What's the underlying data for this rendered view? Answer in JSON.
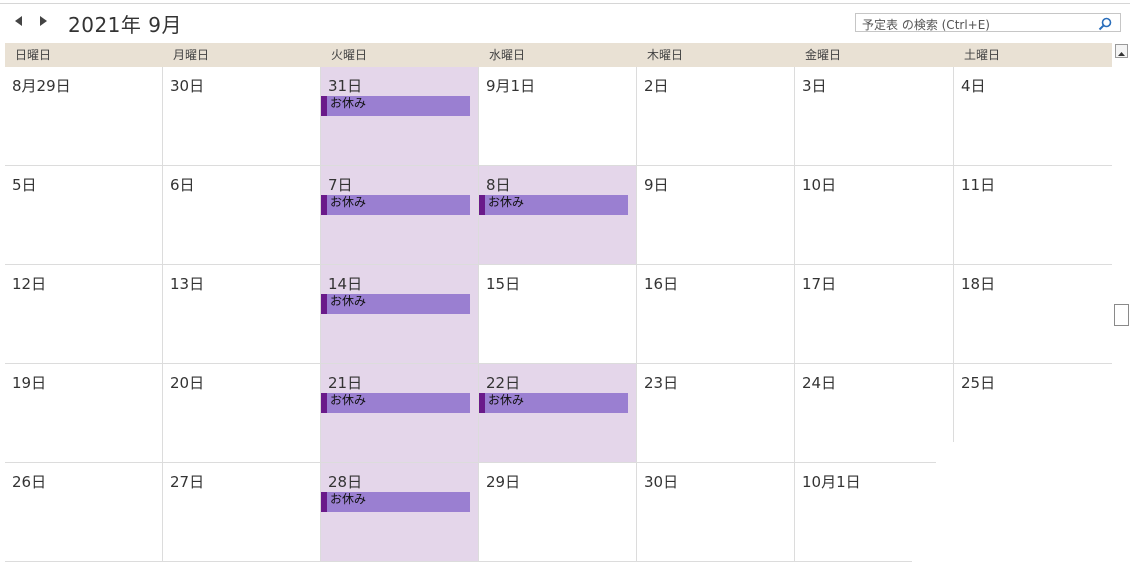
{
  "header": {
    "title": "2021年 9月",
    "search_placeholder": "予定表 の検索 (Ctrl+E)"
  },
  "weekdays": [
    "日曜日",
    "月曜日",
    "火曜日",
    "水曜日",
    "木曜日",
    "金曜日",
    "土曜日"
  ],
  "event_label": "お休み",
  "weeks": [
    {
      "days": [
        "8月29日",
        "30日",
        "31日",
        "9月1日",
        "2日",
        "3日",
        "4日"
      ]
    },
    {
      "days": [
        "5日",
        "6日",
        "7日",
        "8日",
        "9日",
        "10日",
        "11日"
      ]
    },
    {
      "days": [
        "12日",
        "13日",
        "14日",
        "15日",
        "16日",
        "17日",
        "18日"
      ]
    },
    {
      "days": [
        "19日",
        "20日",
        "21日",
        "22日",
        "23日",
        "24日",
        "25日"
      ]
    },
    {
      "days": [
        "26日",
        "27日",
        "28日",
        "29日",
        "30日",
        "10月1日",
        ""
      ]
    }
  ],
  "vacation_days": [
    {
      "week": 0,
      "day": 2
    },
    {
      "week": 1,
      "day": 2
    },
    {
      "week": 1,
      "day": 3
    },
    {
      "week": 2,
      "day": 2
    },
    {
      "week": 3,
      "day": 2
    },
    {
      "week": 3,
      "day": 3
    },
    {
      "week": 4,
      "day": 2
    }
  ],
  "colors": {
    "header_bg": "#e9e1d4",
    "vacation_bg": "#e4d6ea",
    "event_bg": "#9a7fd1",
    "event_bar": "#6a1a8a"
  }
}
